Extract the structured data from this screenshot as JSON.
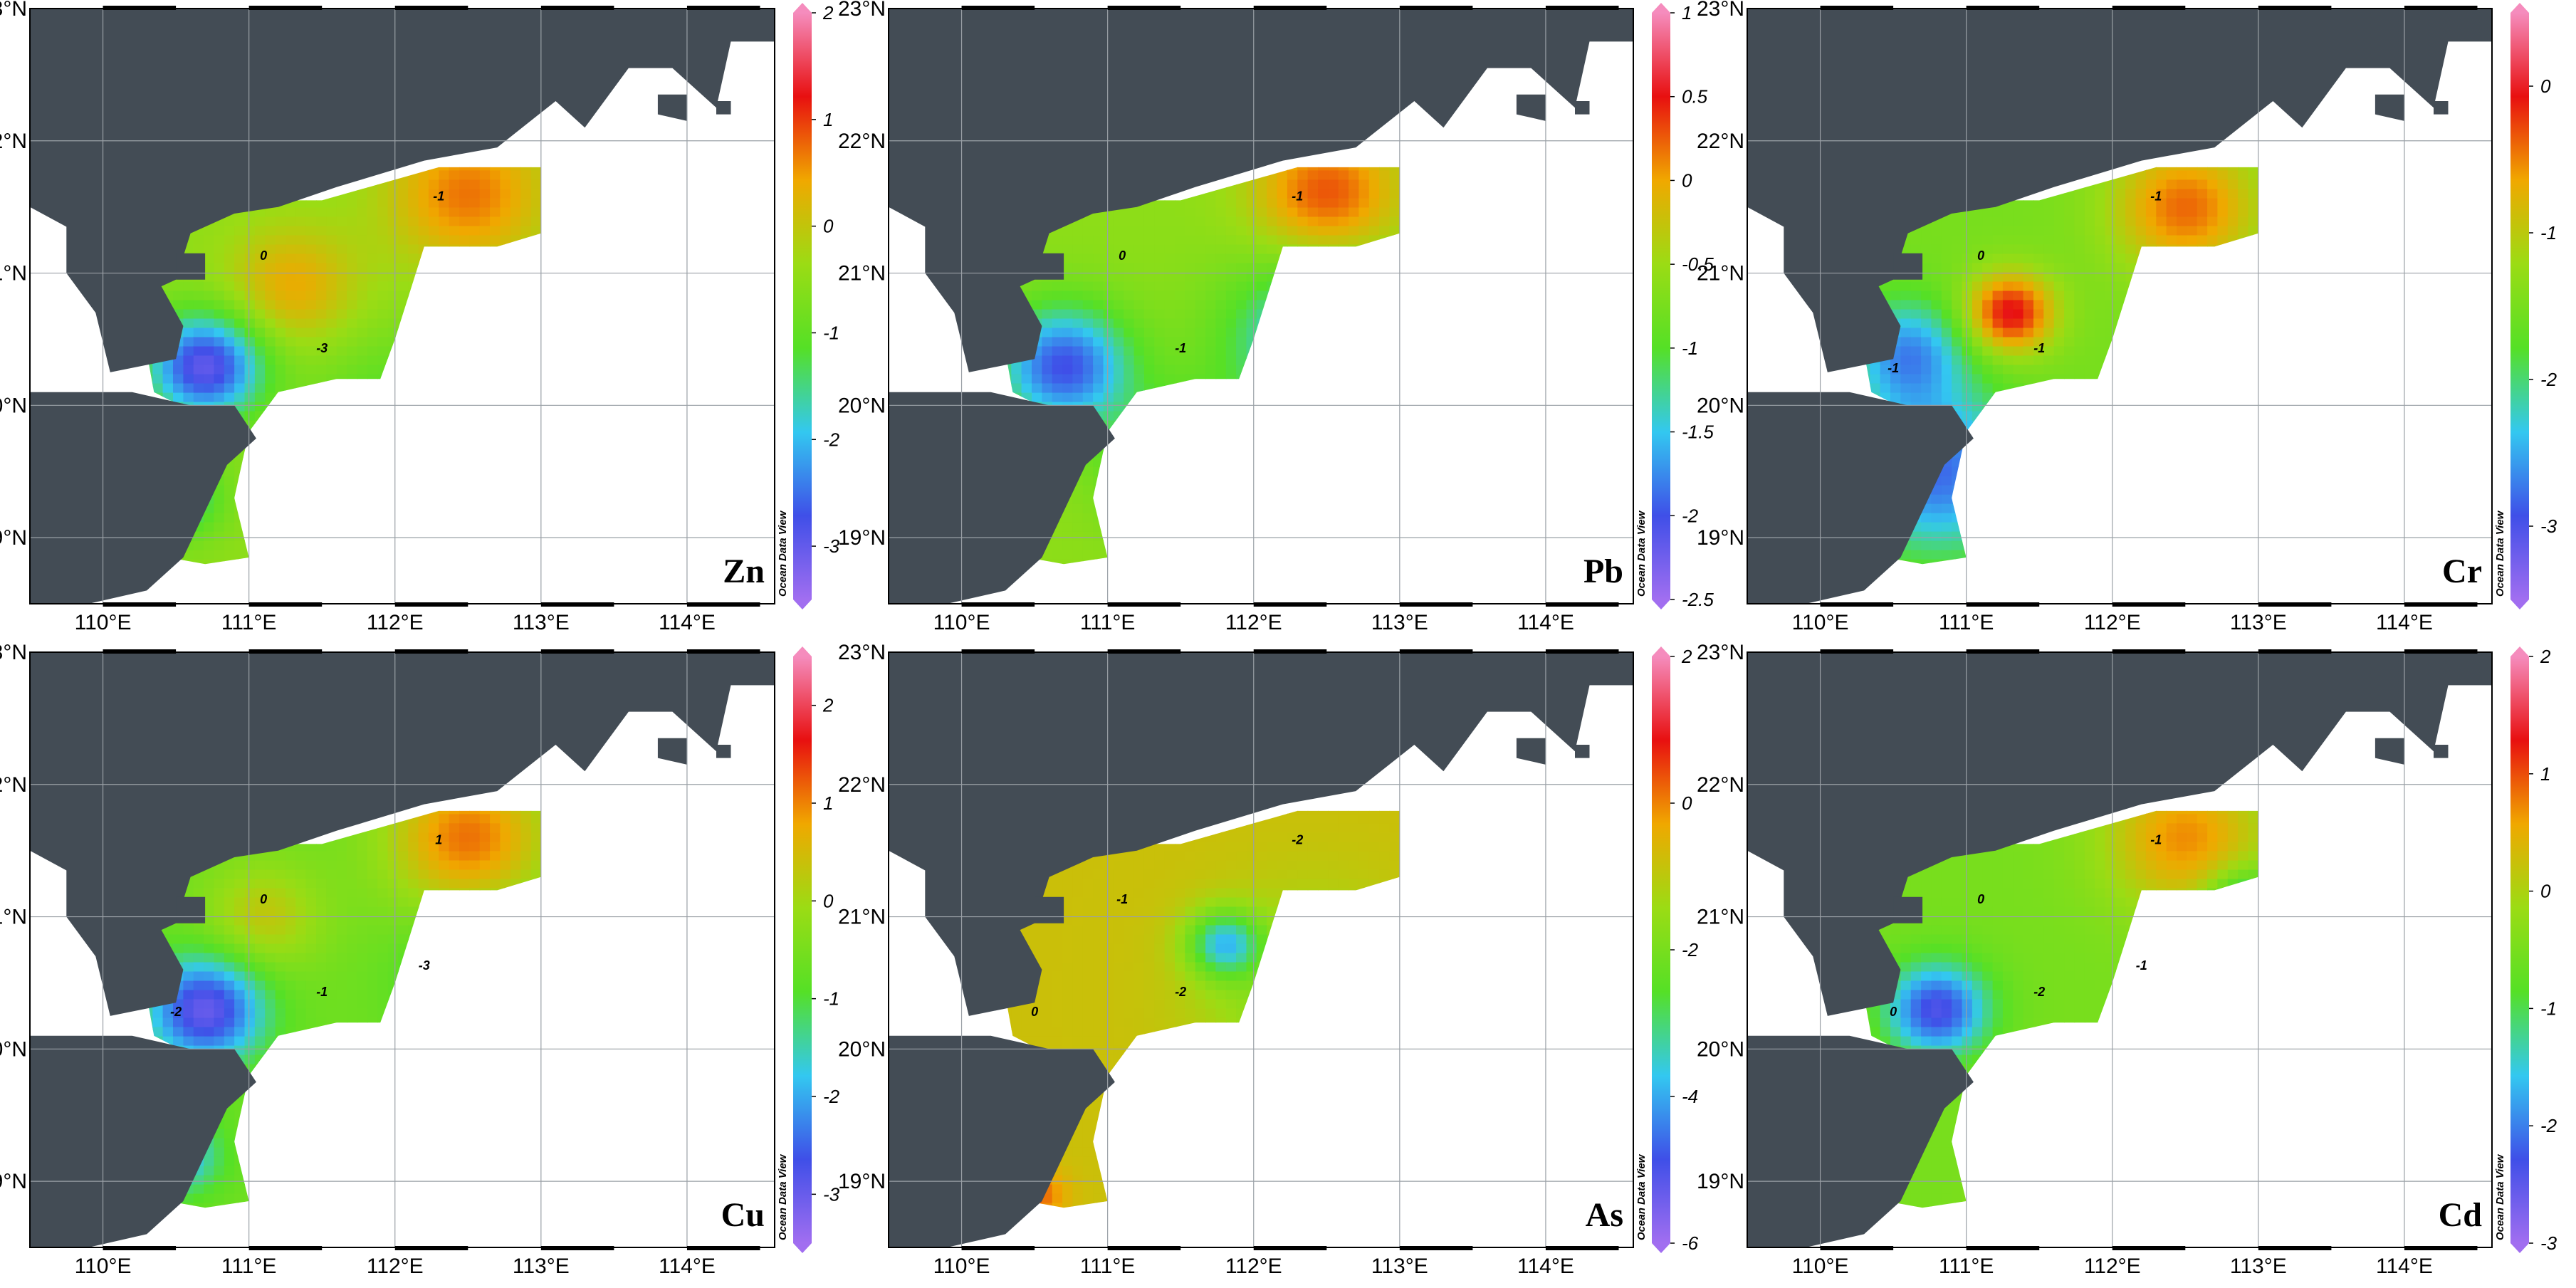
{
  "credit": "Ocean Data View",
  "colors": {
    "land": "#434c55",
    "ramp": [
      "#a16ef0",
      "#3f4fe8",
      "#33c8f0",
      "#55e026",
      "#9bdc14",
      "#f0a800",
      "#e81010",
      "#f58cbd"
    ]
  },
  "lat_ticks": [
    "23°N",
    "22°N",
    "21°N",
    "20°N",
    "19°N"
  ],
  "lon_ticks": [
    "110°E",
    "111°E",
    "112°E",
    "113°E",
    "114°E"
  ],
  "panels": [
    {
      "element": "Zn",
      "cb_ticks": [
        "2",
        "1",
        "0",
        "-1",
        "-2",
        "-3"
      ],
      "range": [
        -3.5,
        2.0
      ],
      "contour_labels": [
        "0",
        "-1",
        "-3"
      ],
      "field": {
        "base": -0.5,
        "blobs": [
          {
            "lon": 112.5,
            "lat": 21.6,
            "v": 0.7,
            "r": 0.55
          },
          {
            "lon": 111.3,
            "lat": 20.9,
            "v": 0.4,
            "r": 0.45
          },
          {
            "lon": 110.7,
            "lat": 20.3,
            "v": -3.0,
            "r": 0.4
          },
          {
            "lon": 110.5,
            "lat": 19.3,
            "v": -1.8,
            "r": 0.3
          },
          {
            "lon": 112.0,
            "lat": 20.0,
            "v": -1.1,
            "r": 0.6
          }
        ]
      }
    },
    {
      "element": "Pb",
      "cb_ticks": [
        "1",
        "0.5",
        "0",
        "-0.5",
        "-1",
        "-1.5",
        "-2",
        "-2.5"
      ],
      "range": [
        -2.5,
        1.0
      ],
      "contour_labels": [
        "0",
        "-1",
        "-1"
      ],
      "field": {
        "base": -0.6,
        "blobs": [
          {
            "lon": 112.5,
            "lat": 21.6,
            "v": 0.3,
            "r": 0.5
          },
          {
            "lon": 110.7,
            "lat": 20.3,
            "v": -2.0,
            "r": 0.45
          },
          {
            "lon": 112.4,
            "lat": 20.5,
            "v": -1.6,
            "r": 0.6
          },
          {
            "lon": 111.5,
            "lat": 19.6,
            "v": -1.3,
            "r": 0.5
          }
        ]
      }
    },
    {
      "element": "Cr",
      "cb_ticks": [
        "0",
        "-1",
        "-2",
        "-3"
      ],
      "range": [
        -3.5,
        0.5
      ],
      "contour_labels": [
        "0",
        "-1",
        "-1",
        "-1"
      ],
      "field": {
        "base": -1.5,
        "blobs": [
          {
            "lon": 111.3,
            "lat": 20.7,
            "v": 0.0,
            "r": 0.3
          },
          {
            "lon": 112.5,
            "lat": 21.5,
            "v": -0.4,
            "r": 0.5
          },
          {
            "lon": 110.8,
            "lat": 19.5,
            "v": -2.8,
            "r": 0.6
          },
          {
            "lon": 110.6,
            "lat": 20.4,
            "v": -2.6,
            "r": 0.4
          },
          {
            "lon": 112.2,
            "lat": 20.3,
            "v": -1.5,
            "r": 0.5
          }
        ]
      }
    },
    {
      "element": "Cu",
      "cb_ticks": [
        "2",
        "1",
        "0",
        "-1",
        "-2",
        "-3"
      ],
      "range": [
        -3.5,
        2.5
      ],
      "contour_labels": [
        "0",
        "1",
        "-1",
        "-2",
        "-3"
      ],
      "field": {
        "base": -0.6,
        "blobs": [
          {
            "lon": 112.5,
            "lat": 21.6,
            "v": 1.1,
            "r": 0.55
          },
          {
            "lon": 111.1,
            "lat": 21.0,
            "v": 0.3,
            "r": 0.4
          },
          {
            "lon": 110.7,
            "lat": 20.3,
            "v": -3.0,
            "r": 0.4
          },
          {
            "lon": 112.6,
            "lat": 20.5,
            "v": -1.6,
            "r": 0.5
          },
          {
            "lon": 110.5,
            "lat": 19.2,
            "v": -2.0,
            "r": 0.3
          }
        ]
      }
    },
    {
      "element": "As",
      "cb_ticks": [
        "2",
        "0",
        "-2",
        "-4",
        "-6"
      ],
      "range": [
        -6.0,
        2.0
      ],
      "contour_labels": [
        "-1",
        "-2",
        "-2",
        "0"
      ],
      "field": {
        "base": -0.8,
        "blobs": [
          {
            "lon": 111.8,
            "lat": 20.8,
            "v": -3.5,
            "r": 0.25
          },
          {
            "lon": 112.4,
            "lat": 20.4,
            "v": -2.0,
            "r": 0.7
          },
          {
            "lon": 110.5,
            "lat": 18.9,
            "v": 0.3,
            "r": 0.2
          }
        ]
      }
    },
    {
      "element": "Cd",
      "cb_ticks": [
        "2",
        "1",
        "0",
        "-1",
        "-2",
        "-3"
      ],
      "range": [
        -3.0,
        2.0
      ],
      "contour_labels": [
        "0",
        "-1",
        "-2",
        "0",
        "-1"
      ],
      "field": {
        "base": -0.5,
        "blobs": [
          {
            "lon": 112.5,
            "lat": 21.6,
            "v": 0.7,
            "r": 0.55
          },
          {
            "lon": 110.8,
            "lat": 20.3,
            "v": -2.4,
            "r": 0.35
          },
          {
            "lon": 112.9,
            "lat": 21.1,
            "v": -1.8,
            "r": 0.25
          },
          {
            "lon": 111.3,
            "lat": 18.9,
            "v": 0.2,
            "r": 0.2
          }
        ]
      }
    }
  ]
}
